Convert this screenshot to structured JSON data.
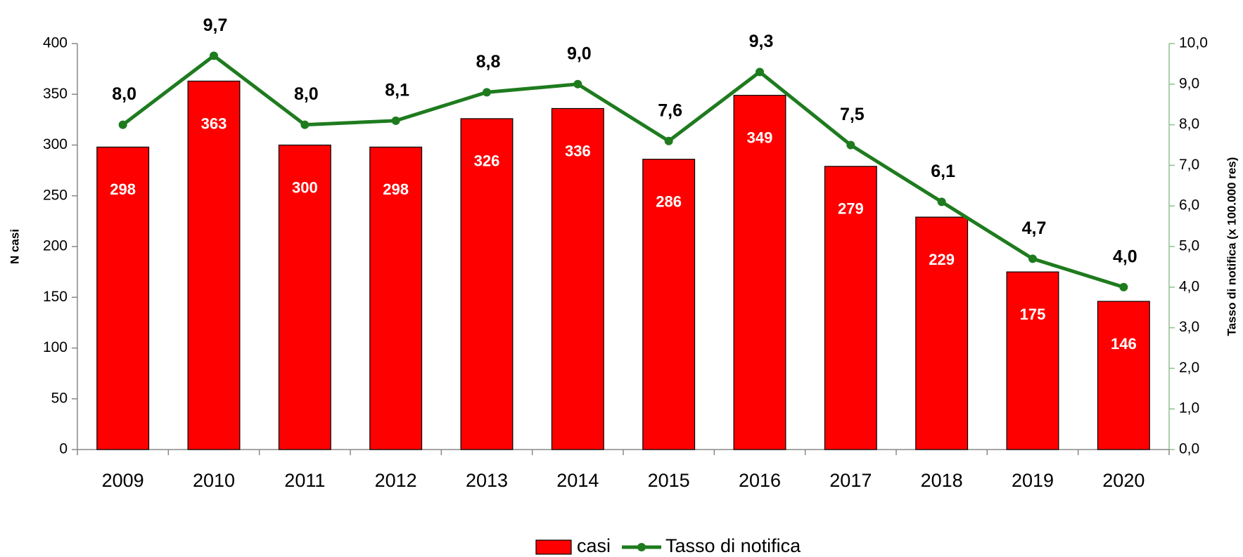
{
  "chart_data": {
    "type": "bar",
    "categories": [
      "2009",
      "2010",
      "2011",
      "2012",
      "2013",
      "2014",
      "2015",
      "2016",
      "2017",
      "2018",
      "2019",
      "2020"
    ],
    "y_label": "N casi",
    "y2_label": "Tasso di notifica (x 100.000 res)",
    "ylim": [
      0,
      400
    ],
    "yticks": [
      0,
      50,
      100,
      150,
      200,
      250,
      300,
      350,
      400
    ],
    "y2lim": [
      0,
      10
    ],
    "y2ticks": [
      {
        "value": 0,
        "label": "0,0"
      },
      {
        "value": 1,
        "label": "1,0"
      },
      {
        "value": 2,
        "label": "2,0"
      },
      {
        "value": 3,
        "label": "3,0"
      },
      {
        "value": 4,
        "label": "4,0"
      },
      {
        "value": 5,
        "label": "5,0"
      },
      {
        "value": 6,
        "label": "6,0"
      },
      {
        "value": 7,
        "label": "7,0"
      },
      {
        "value": 8,
        "label": "8,0"
      },
      {
        "value": 9,
        "label": "9,0"
      },
      {
        "value": 10,
        "label": "10,0"
      }
    ],
    "series": [
      {
        "name": "casi",
        "type": "bar",
        "color": "#ff0000",
        "values": [
          298,
          363,
          300,
          298,
          326,
          336,
          286,
          349,
          279,
          229,
          175,
          146
        ]
      },
      {
        "name": "Tasso di notifica",
        "type": "line",
        "axis": "y2",
        "color": "#1e7b1e",
        "values": [
          8.0,
          9.7,
          8.0,
          8.1,
          8.8,
          9.0,
          7.6,
          9.3,
          7.5,
          6.1,
          4.7,
          4.0
        ],
        "value_labels": [
          "8,0",
          "9,7",
          "8,0",
          "8,1",
          "8,8",
          "9,0",
          "7,6",
          "9,3",
          "7,5",
          "6,1",
          "4,7",
          "4,0"
        ]
      }
    ]
  }
}
